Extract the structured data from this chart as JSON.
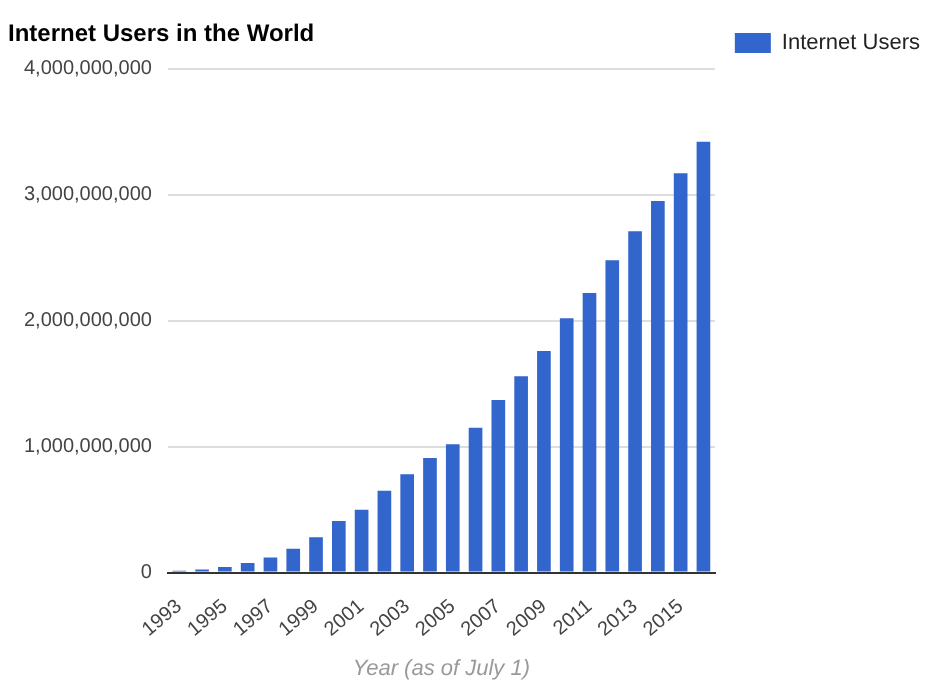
{
  "chart_data": {
    "type": "bar",
    "title": "Internet Users in the World",
    "xlabel": "Year (as of July 1)",
    "categories": [
      "1993",
      null,
      "1995",
      null,
      "1997",
      null,
      "1999",
      null,
      "2001",
      null,
      "2003",
      null,
      "2005",
      null,
      "2007",
      null,
      "2009",
      null,
      "2011",
      null,
      "2013",
      null,
      "2015",
      null
    ],
    "series": [
      {
        "name": "Internet Users",
        "color": "#3366cc",
        "values": [
          14000000,
          25000000,
          45000000,
          77000000,
          120000000,
          190000000,
          280000000,
          410000000,
          500000000,
          650000000,
          780000000,
          910000000,
          1020000000,
          1150000000,
          1370000000,
          1560000000,
          1760000000,
          2020000000,
          2220000000,
          2480000000,
          2710000000,
          2950000000,
          3170000000,
          3420000000
        ]
      }
    ],
    "ylim": [
      0,
      4000000000
    ],
    "yticks": [
      0,
      {
        "value": 1000000000,
        "label": "1,000,000,000"
      },
      {
        "value": 2000000000,
        "label": "2,000,000,000"
      },
      {
        "value": 3000000000,
        "label": "3,000,000,000"
      },
      {
        "value": 4000000000,
        "label": "4,000,000,000"
      }
    ],
    "grid": "y",
    "legend": "top right"
  }
}
